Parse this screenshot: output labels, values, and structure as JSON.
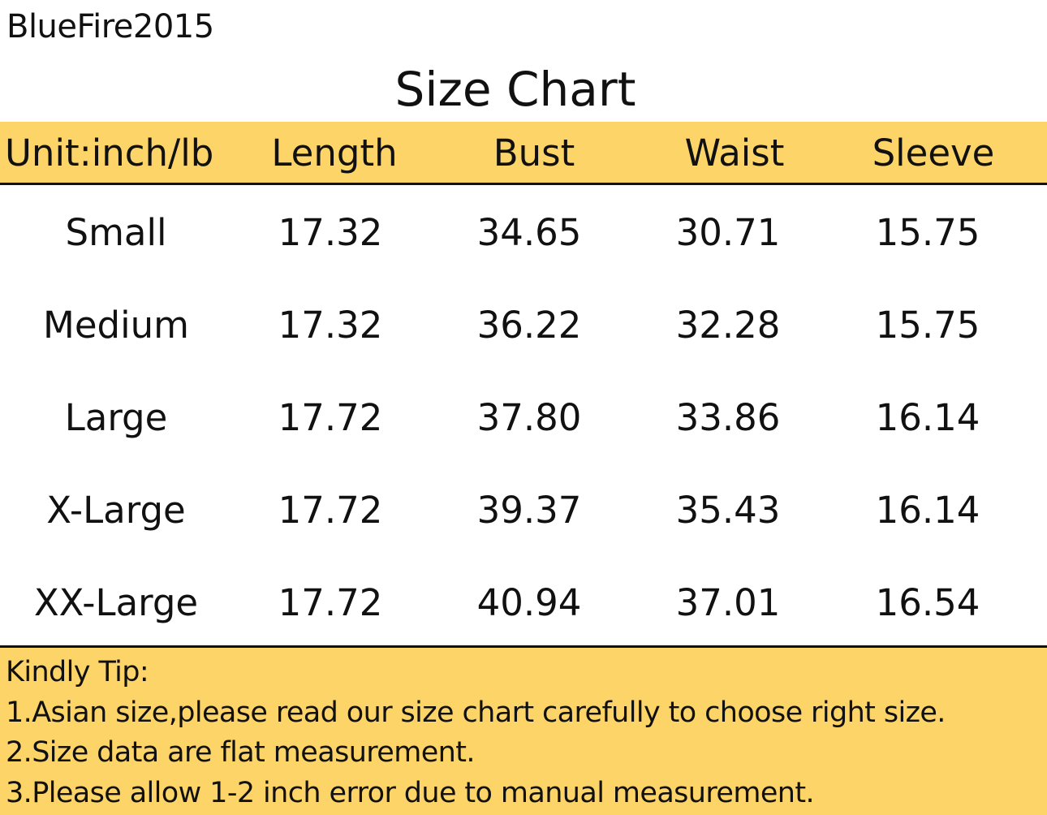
{
  "brand": "BlueFire2015",
  "title": "Size Chart",
  "colors": {
    "band": "#fdd468",
    "text": "#111111"
  },
  "table": {
    "headers": [
      "Unit:inch/lb",
      "Length",
      "Bust",
      "Waist",
      "Sleeve"
    ],
    "rows": [
      [
        "Small",
        "17.32",
        "34.65",
        "30.71",
        "15.75"
      ],
      [
        "Medium",
        "17.32",
        "36.22",
        "32.28",
        "15.75"
      ],
      [
        "Large",
        "17.72",
        "37.80",
        "33.86",
        "16.14"
      ],
      [
        "X-Large",
        "17.72",
        "39.37",
        "35.43",
        "16.14"
      ],
      [
        "XX-Large",
        "17.72",
        "40.94",
        "37.01",
        "16.54"
      ]
    ]
  },
  "tips": {
    "heading": "Kindly Tip:",
    "items": [
      "1.Asian size,please read our size chart carefully to choose right size.",
      "2.Size data are flat measurement.",
      "3.Please allow 1-2 inch error due to manual measurement."
    ]
  }
}
